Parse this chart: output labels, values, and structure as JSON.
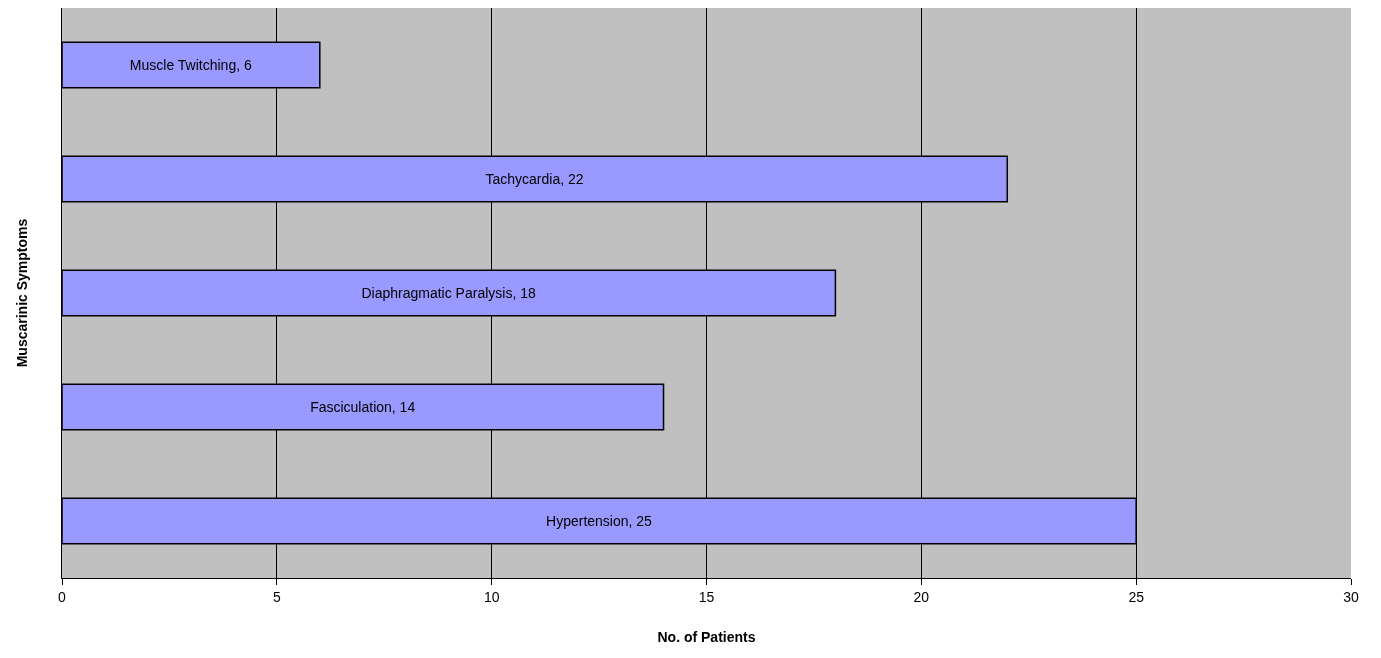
{
  "chart_data": {
    "type": "bar",
    "orientation": "horizontal",
    "xlabel": "No. of Patients",
    "ylabel": "Muscarinic Symptoms",
    "categories": [
      null,
      null,
      null,
      null,
      null
    ],
    "values": [
      6,
      22,
      18,
      14,
      25
    ],
    "color": "#9999ff",
    "xlim": [
      0,
      30
    ],
    "xticks": [
      0,
      5,
      10,
      15,
      20,
      25,
      30
    ],
    "value_labels": [
      "Muscle Twitching, 6",
      "Tachycardia, 22",
      "Diaphragmatic Paralysis, 18",
      "Fasciculation, 14",
      "Hypertension, 25"
    ],
    "grid": "x",
    "tick_labels": "x",
    "legend": false
  }
}
